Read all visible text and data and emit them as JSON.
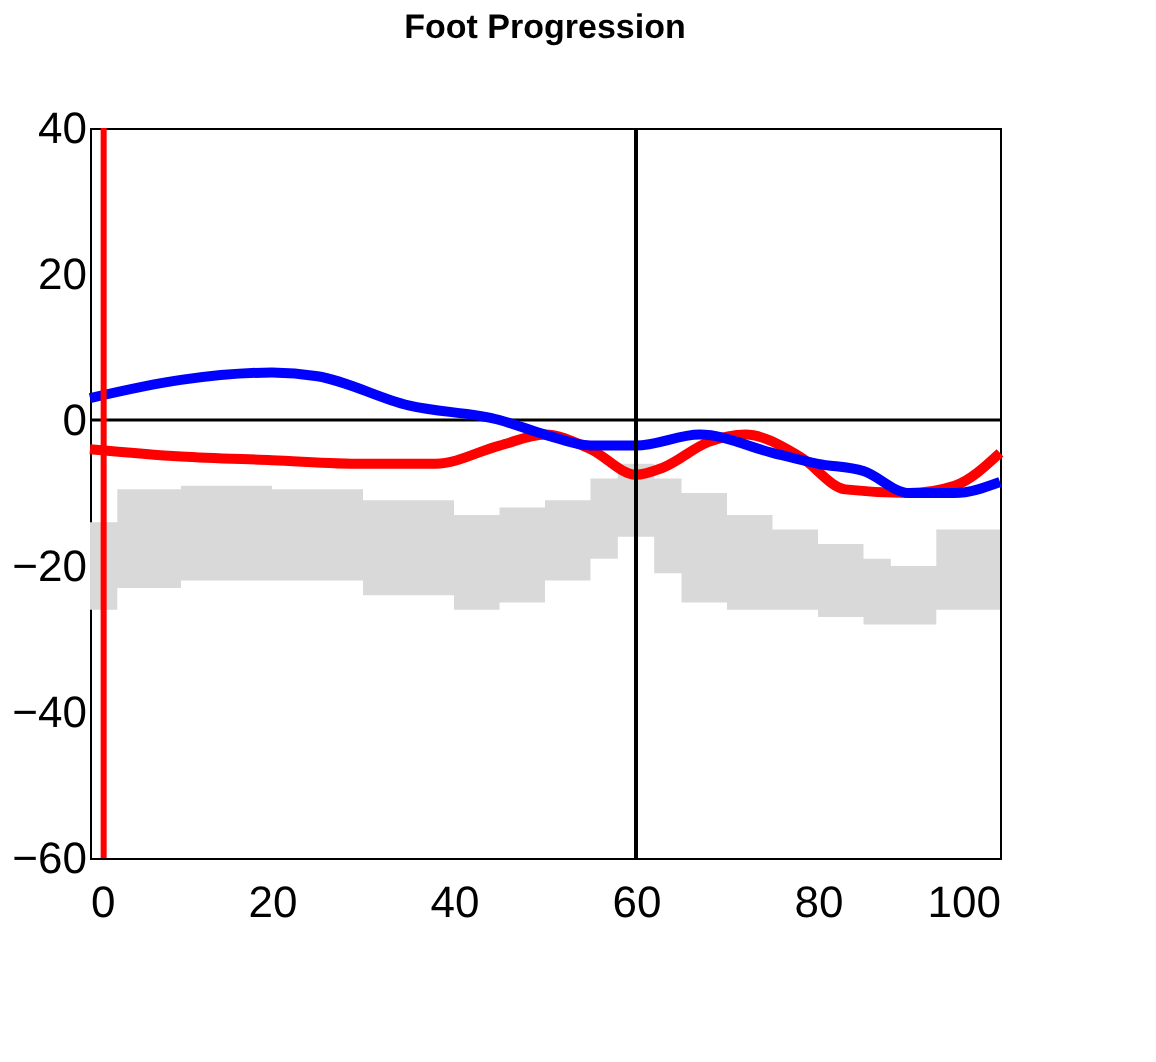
{
  "chart_data": {
    "type": "line",
    "title": "Foot Progression",
    "xlim": [
      0,
      100
    ],
    "ylim": [
      -60,
      40
    ],
    "xticks": [
      0,
      20,
      40,
      60,
      80,
      100
    ],
    "yticks": [
      40,
      20,
      0,
      -20,
      -40,
      -60
    ],
    "grid": false,
    "marker": "none",
    "line_style": "solid",
    "series": [
      {
        "type": "area",
        "color": "#d9d9d9",
        "x": [
          0,
          2,
          3,
          10,
          20,
          30,
          40,
          45,
          50,
          55,
          58,
          62,
          65,
          70,
          75,
          80,
          85,
          88,
          93,
          100
        ],
        "lower": [
          -26,
          -26,
          -23,
          -22,
          -22,
          -24,
          -26,
          -25,
          -22,
          -19,
          -16,
          -21,
          -25,
          -26,
          -26,
          -27,
          -28,
          -28,
          -26,
          -26
        ],
        "upper": [
          -14,
          -14,
          -9.5,
          -9,
          -9.5,
          -11,
          -13,
          -12,
          -11,
          -8,
          -6,
          -8,
          -10,
          -13,
          -15,
          -17,
          -19,
          -20,
          -15,
          -14
        ],
        "values": [
          null,
          null,
          null,
          null,
          null,
          null,
          null,
          null,
          null,
          null,
          null,
          null,
          null,
          null,
          null,
          null,
          null,
          null,
          null,
          null
        ]
      },
      {
        "color": "#ff0000",
        "x": [
          0,
          10,
          20,
          30,
          38,
          45,
          50,
          55,
          60,
          63,
          68,
          72,
          78,
          83,
          90,
          95,
          100
        ],
        "values": [
          -4,
          -5,
          -5.5,
          -6,
          -6,
          -3.5,
          -2,
          -4,
          -7.5,
          -6.5,
          -3,
          -2,
          -5,
          -9.5,
          -10,
          -9,
          -4.5
        ]
      },
      {
        "color": "#0000ff",
        "x": [
          0,
          10,
          20,
          25,
          35,
          45,
          50,
          55,
          60,
          67,
          75,
          80,
          85,
          90,
          95,
          100
        ],
        "values": [
          3,
          5.5,
          6.5,
          6,
          2,
          0,
          -2,
          -3.5,
          -3.5,
          -2,
          -4.5,
          -6,
          -7,
          -10,
          -10,
          -8.5
        ]
      }
    ],
    "ref_lines": [
      {
        "axis": "x",
        "value": 1.5,
        "color": "#ff0000"
      },
      {
        "axis": "x",
        "value": 60,
        "color": "#000000"
      },
      {
        "axis": "y",
        "value": 0,
        "color": "#000000"
      }
    ]
  }
}
